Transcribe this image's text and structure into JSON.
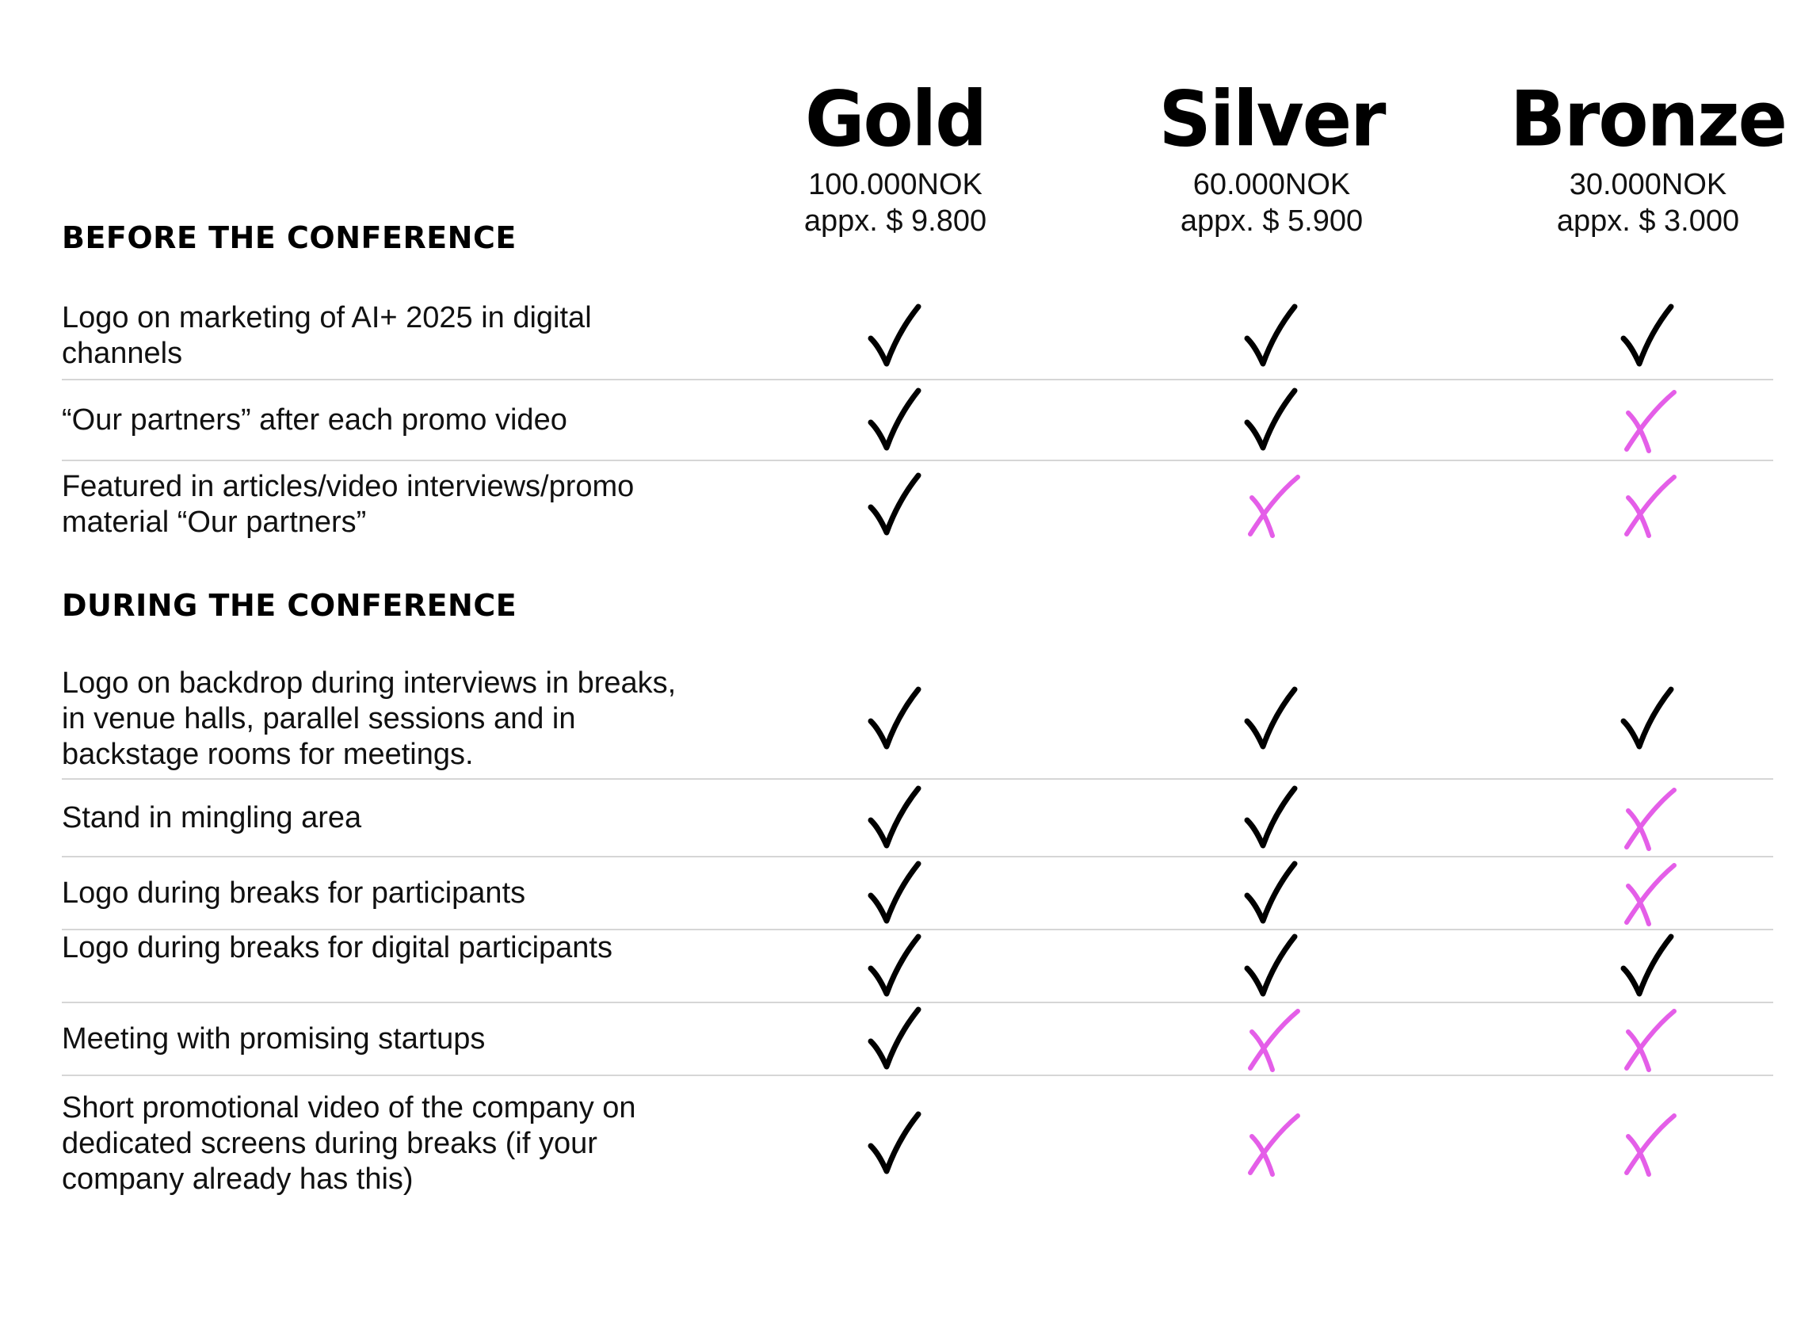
{
  "colors": {
    "check": "#000000",
    "cross": "#e45ee8",
    "divider": "#d6d6d6"
  },
  "tiers": [
    {
      "name": "Gold",
      "price": "100.000NOK",
      "approx": "appx. $ 9.800"
    },
    {
      "name": "Silver",
      "price": "60.000NOK",
      "approx": "appx. $ 5.900"
    },
    {
      "name": "Bronze",
      "price": "30.000NOK",
      "approx": "appx. $ 3.000"
    }
  ],
  "sections": [
    {
      "heading": "Before the conference",
      "rows": [
        {
          "label": "Logo on marketing of AI+ 2025 in digital channels",
          "marks": [
            "check",
            "check",
            "check"
          ]
        },
        {
          "label": "“Our partners” after each promo video",
          "marks": [
            "check",
            "check",
            "cross"
          ]
        },
        {
          "label": "Featured in articles/video interviews/promo material “Our partners”",
          "marks": [
            "check",
            "cross",
            "cross"
          ]
        }
      ]
    },
    {
      "heading": "During the conference",
      "rows": [
        {
          "label": "Logo on backdrop during interviews in breaks, in venue halls, parallel sessions and in backstage rooms for meetings.",
          "marks": [
            "check",
            "check",
            "check"
          ]
        },
        {
          "label": "Stand in mingling area",
          "marks": [
            "check",
            "check",
            "cross"
          ]
        },
        {
          "label": "Logo during breaks for participants",
          "marks": [
            "check",
            "check",
            "cross"
          ]
        },
        {
          "label": "Logo during breaks for digital participants",
          "marks": [
            "check",
            "check",
            "check"
          ]
        },
        {
          "label": "Meeting with promising startups",
          "marks": [
            "check",
            "cross",
            "cross"
          ]
        },
        {
          "label": "Short promotional video of the company on dedicated screens during breaks (if your company already has this)",
          "marks": [
            "check",
            "cross",
            "cross"
          ]
        }
      ]
    }
  ]
}
